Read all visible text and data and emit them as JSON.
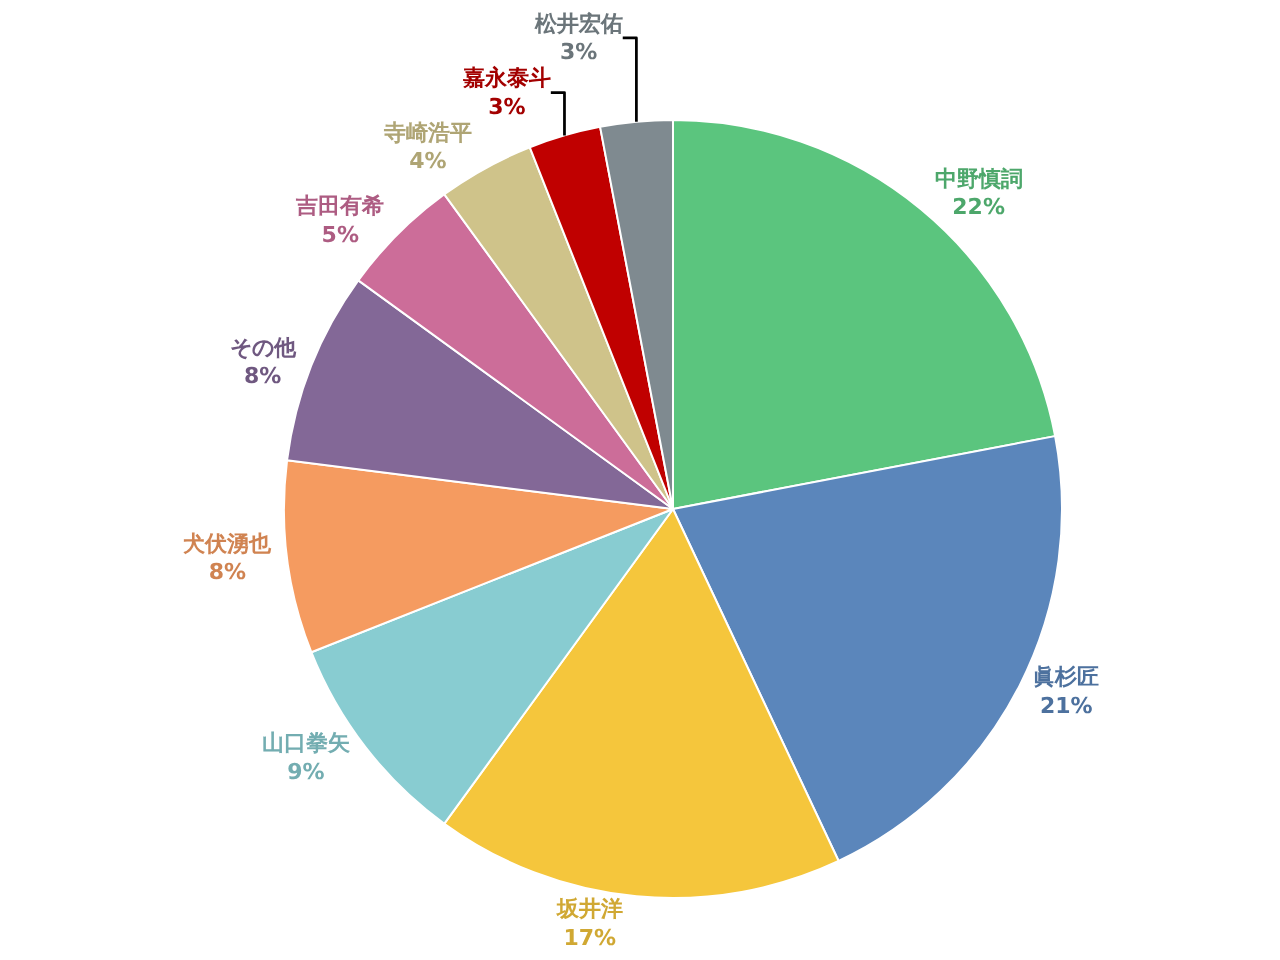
{
  "chart_data": {
    "type": "pie",
    "categories": [
      "中野慎詞",
      "眞杉匠",
      "坂井洋",
      "山口拳矢",
      "犬伏湧也",
      "その他",
      "吉田有希",
      "寺崎浩平",
      "嘉永泰斗",
      "松井宏佑"
    ],
    "values": [
      22,
      21,
      17,
      9,
      8,
      8,
      5,
      4,
      3,
      3
    ],
    "colors": [
      "#5bc57e",
      "#5b86bb",
      "#f5c63c",
      "#88ccd1",
      "#f59b60",
      "#836897",
      "#cc6d99",
      "#cfc38a",
      "#c00000",
      "#7f8a90"
    ],
    "value_labels": [
      "22%",
      "21%",
      "17%",
      "9%",
      "8%",
      "8%",
      "5%",
      "4%",
      "3%",
      "3%"
    ],
    "legend": false
  }
}
